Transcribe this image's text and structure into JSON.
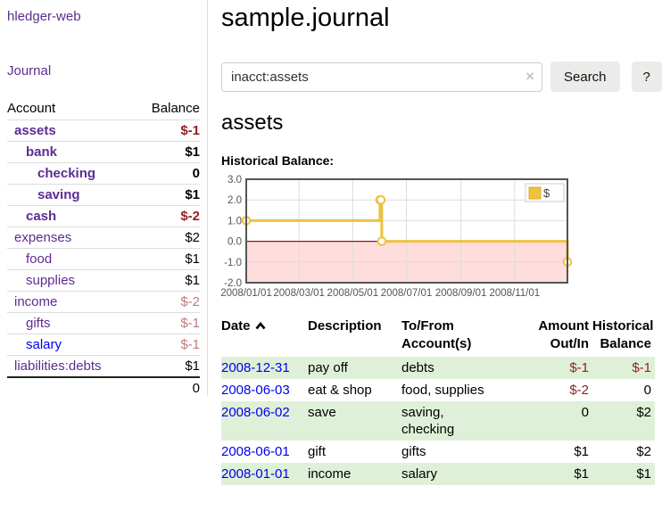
{
  "sidebar": {
    "app_title": "hledger-web",
    "nav": {
      "journal_label": "Journal"
    },
    "accounts_table": {
      "headers": {
        "account": "Account",
        "balance": "Balance"
      },
      "rows": [
        {
          "name": "assets",
          "balance": "$-1",
          "depth": 0,
          "bold": true,
          "link_color": "purple",
          "balance_tone": "negative-strong"
        },
        {
          "name": "bank",
          "balance": "$1",
          "depth": 1,
          "bold": true,
          "link_color": "purple",
          "balance_tone": "normal"
        },
        {
          "name": "checking",
          "balance": "0",
          "depth": 2,
          "bold": true,
          "link_color": "purple",
          "balance_tone": "normal"
        },
        {
          "name": "saving",
          "balance": "$1",
          "depth": 2,
          "bold": true,
          "link_color": "purple",
          "balance_tone": "normal"
        },
        {
          "name": "cash",
          "balance": "$-2",
          "depth": 1,
          "bold": true,
          "link_color": "purple",
          "balance_tone": "negative-strong"
        },
        {
          "name": "expenses",
          "balance": "$2",
          "depth": 0,
          "bold": false,
          "link_color": "purple",
          "balance_tone": "normal"
        },
        {
          "name": "food",
          "balance": "$1",
          "depth": 1,
          "bold": false,
          "link_color": "purple",
          "balance_tone": "normal"
        },
        {
          "name": "supplies",
          "balance": "$1",
          "depth": 1,
          "bold": false,
          "link_color": "purple",
          "balance_tone": "normal"
        },
        {
          "name": "income",
          "balance": "$-2",
          "depth": 0,
          "bold": false,
          "link_color": "purple",
          "balance_tone": "negative-soft"
        },
        {
          "name": "gifts",
          "balance": "$-1",
          "depth": 1,
          "bold": false,
          "link_color": "purple",
          "balance_tone": "negative-soft"
        },
        {
          "name": "salary",
          "balance": "$-1",
          "depth": 1,
          "bold": false,
          "link_color": "blue",
          "balance_tone": "negative-soft"
        },
        {
          "name": "liabilities:debts",
          "balance": "$1",
          "depth": 0,
          "bold": false,
          "link_color": "purple",
          "balance_tone": "normal"
        }
      ],
      "total": "0"
    }
  },
  "header": {
    "title": "sample.journal"
  },
  "search": {
    "query": "inacct:assets",
    "clear_icon": "×",
    "search_label": "Search",
    "help_label": "?"
  },
  "account_page": {
    "heading": "assets",
    "chart_label": "Historical Balance:"
  },
  "chart_data": {
    "type": "line",
    "title": "Historical Balance",
    "step": true,
    "series": [
      {
        "name": "$",
        "color": "#edc240",
        "points": [
          {
            "date": "2008-01-01",
            "day": 0,
            "value": 1
          },
          {
            "date": "2008-06-01",
            "day": 152,
            "value": 2
          },
          {
            "date": "2008-06-02",
            "day": 153,
            "value": 2
          },
          {
            "date": "2008-06-03",
            "day": 154,
            "value": 0
          },
          {
            "date": "2008-12-31",
            "day": 365,
            "value": -1
          }
        ]
      }
    ],
    "x_ticks": [
      {
        "label": "2008/01/01",
        "day": 0
      },
      {
        "label": "2008/03/01",
        "day": 60
      },
      {
        "label": "2008/05/01",
        "day": 121
      },
      {
        "label": "2008/07/01",
        "day": 182
      },
      {
        "label": "2008/09/01",
        "day": 244
      },
      {
        "label": "2008/11/01",
        "day": 305
      }
    ],
    "y_ticks": [
      {
        "label": "3.0",
        "value": 3
      },
      {
        "label": "2.0",
        "value": 2
      },
      {
        "label": "1.0",
        "value": 1
      },
      {
        "label": "0.0",
        "value": 0
      },
      {
        "label": "-1.0",
        "value": -1
      },
      {
        "label": "-2.0",
        "value": -2
      }
    ],
    "ylim": [
      -2,
      3
    ],
    "xlim_days": [
      0,
      365
    ],
    "grid": true,
    "legend": {
      "label": "$",
      "position": "top-right"
    },
    "negative_region_fill": "#ffdddd",
    "zero_line_color": "#8e1a1a",
    "axis_text_color": "#545454",
    "grid_color": "#dddddd",
    "border_color": "#545454"
  },
  "transactions": {
    "columns": [
      {
        "label": "Date",
        "align": "left",
        "sortable": true,
        "sort": "ascending"
      },
      {
        "label": "Description",
        "align": "left"
      },
      {
        "label": "To/From\nAccount(s)",
        "align": "left"
      },
      {
        "label": "Amount\nOut/In",
        "align": "right"
      },
      {
        "label": "Historical\nBalance",
        "align": "right"
      }
    ],
    "rows": [
      {
        "date": "2008-12-31",
        "description": "pay off",
        "accounts": "debts",
        "amount": "$-1",
        "amount_negative": true,
        "balance": "$-1",
        "balance_negative": true
      },
      {
        "date": "2008-06-03",
        "description": "eat & shop",
        "accounts": "food, supplies",
        "amount": "$-2",
        "amount_negative": true,
        "balance": "0",
        "balance_negative": false
      },
      {
        "date": "2008-06-02",
        "description": "save",
        "accounts": "saving,\nchecking",
        "amount": "0",
        "amount_negative": false,
        "balance": "$2",
        "balance_negative": false
      },
      {
        "date": "2008-06-01",
        "description": "gift",
        "accounts": "gifts",
        "amount": "$1",
        "amount_negative": false,
        "balance": "$2",
        "balance_negative": false
      },
      {
        "date": "2008-01-01",
        "description": "income",
        "accounts": "salary",
        "amount": "$1",
        "amount_negative": false,
        "balance": "$1",
        "balance_negative": false
      }
    ]
  },
  "colors": {
    "link_purple": "#5c2d91",
    "link_blue": "#0000ee",
    "negative_strong": "#941f1f",
    "negative_soft": "#bd7b7b",
    "row_stripe_green": "#dff0d8",
    "series_gold": "#edc240",
    "chart_negative_fill": "#ffdddd",
    "chart_zero_line": "#8e1a1a"
  }
}
